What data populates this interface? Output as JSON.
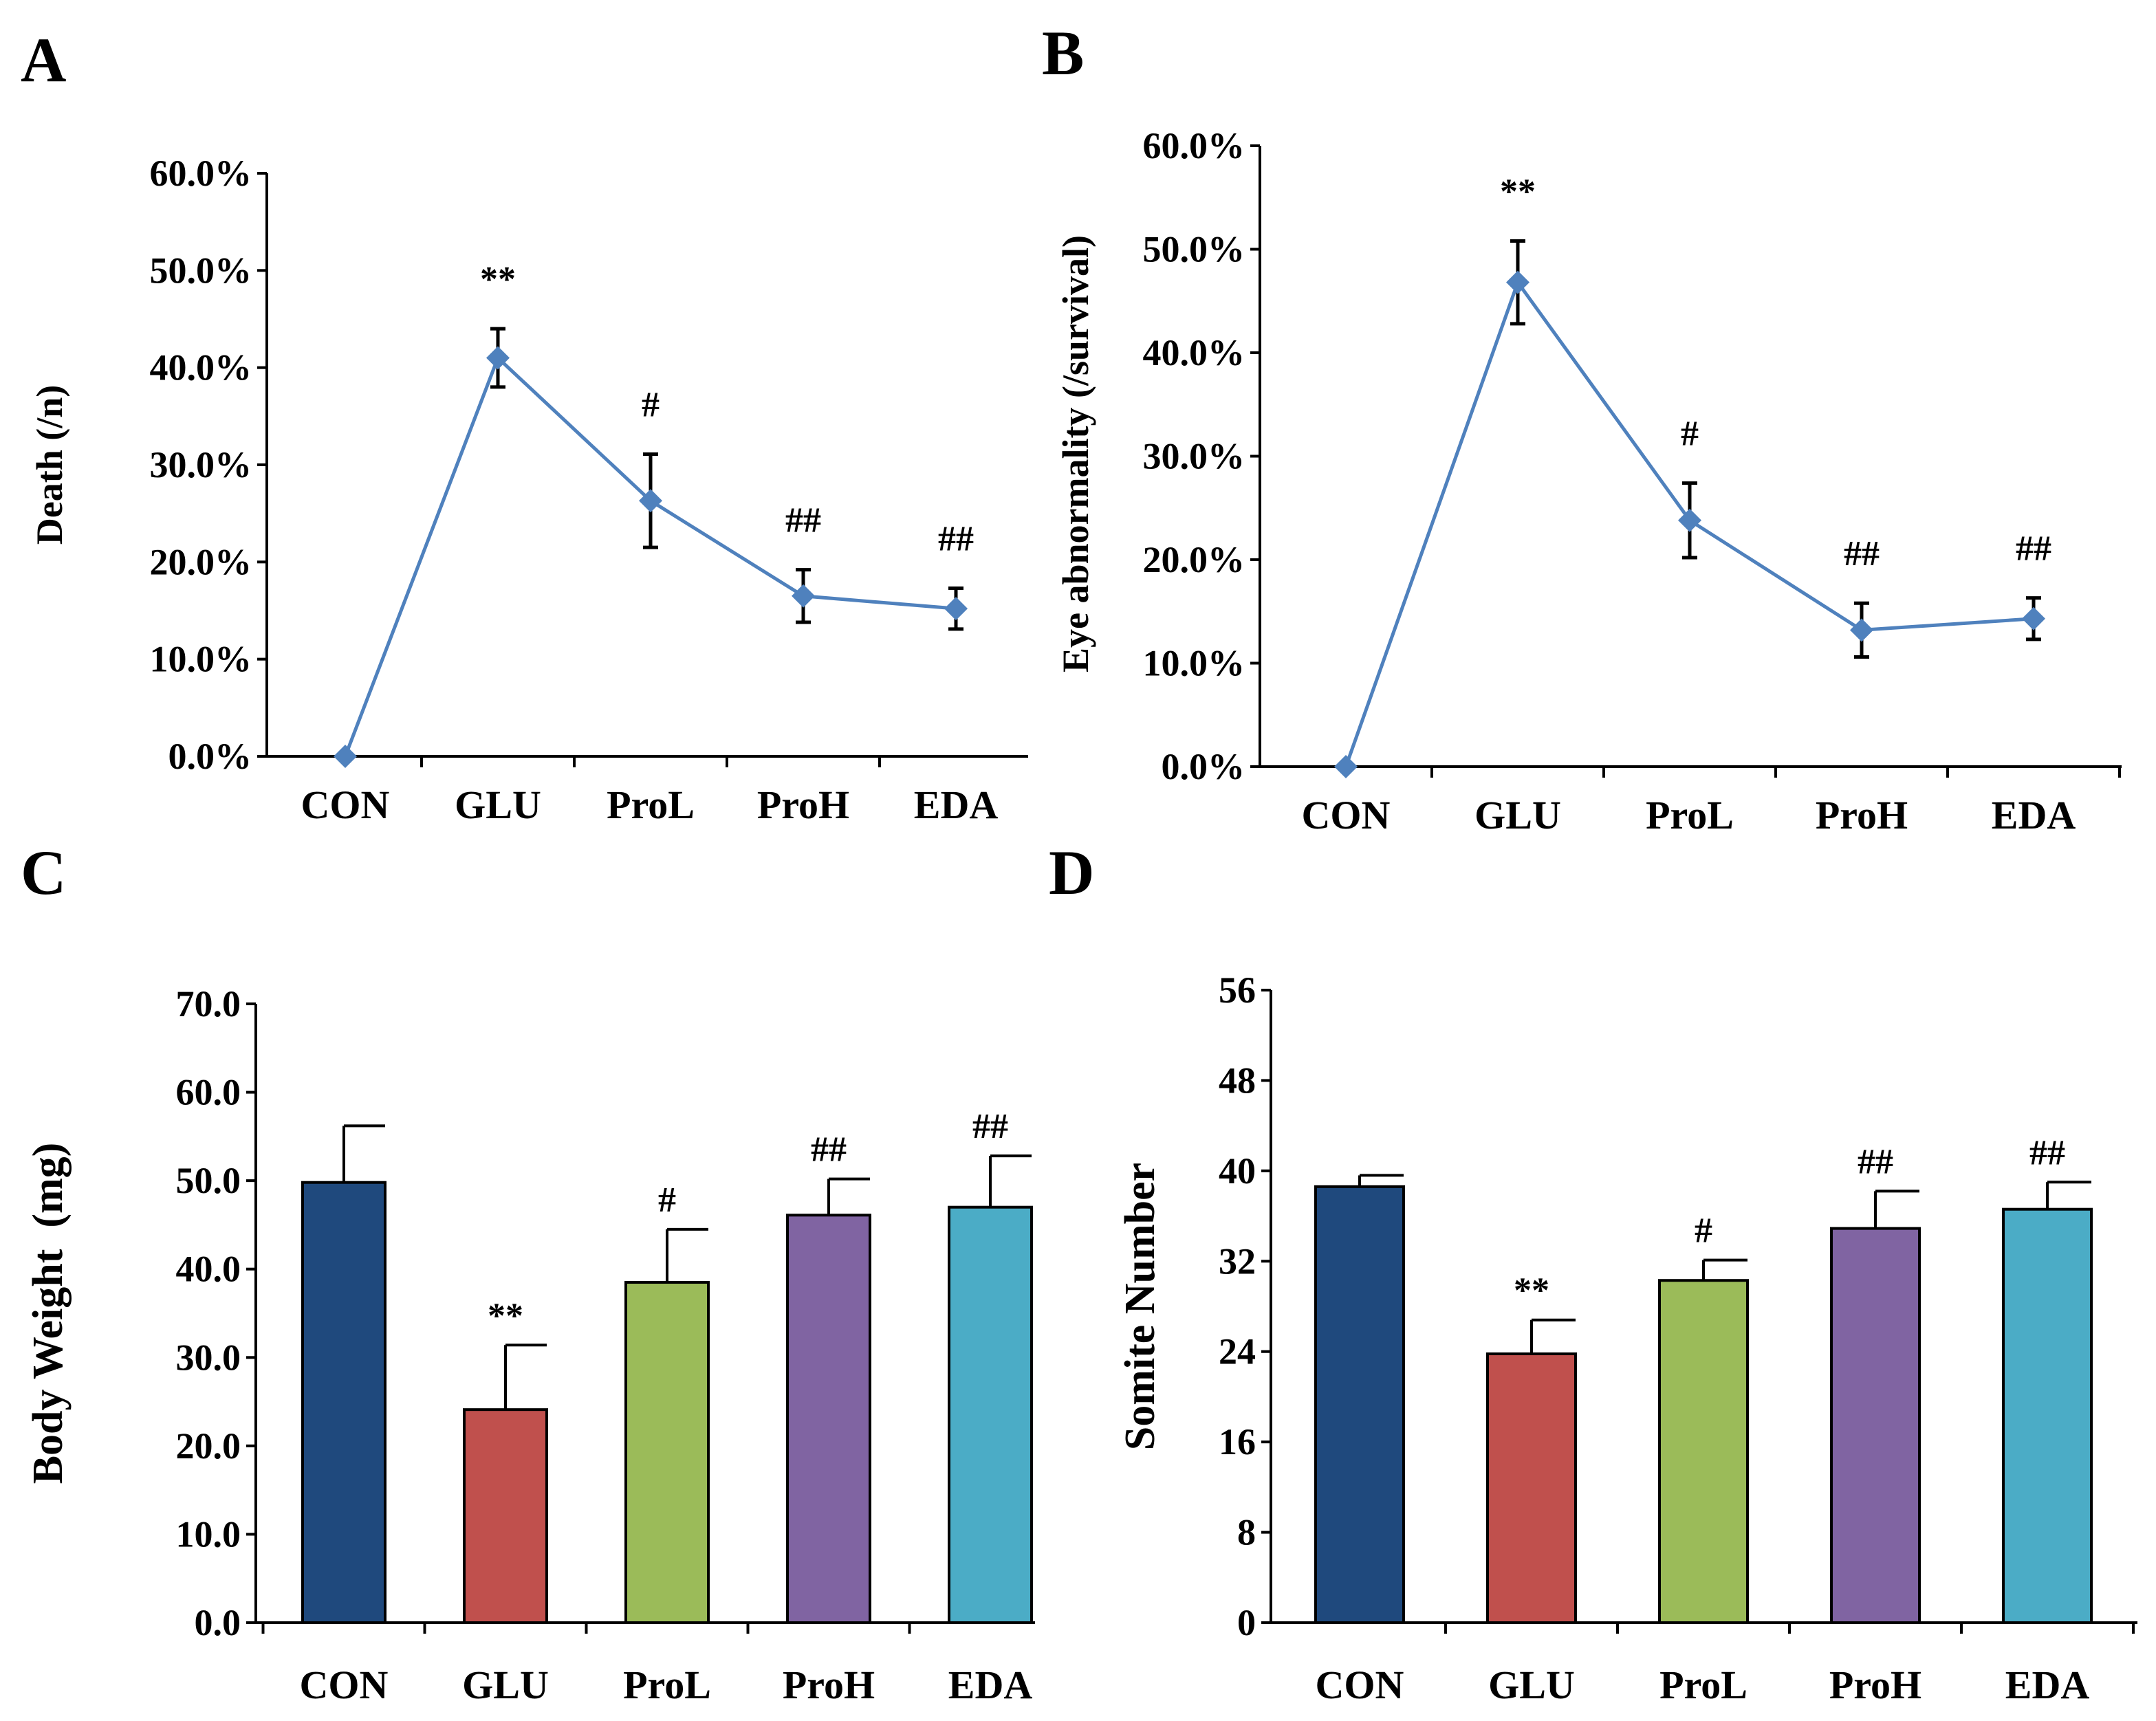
{
  "chart_data": [
    {
      "panel": "A",
      "type": "line",
      "categories": [
        "CON",
        "GLU",
        "ProL",
        "ProH",
        "EDA"
      ],
      "values": [
        0.0,
        41.0,
        26.3,
        16.5,
        15.2
      ],
      "errors": [
        0.0,
        3.0,
        4.8,
        2.7,
        2.1
      ],
      "significance": [
        "",
        "**",
        "#",
        "##",
        "##"
      ],
      "ylabel": "Death (/n)",
      "ylim": [
        0,
        60
      ],
      "yticks": [
        "0.0%",
        "10.0%",
        "20.0%",
        "30.0%",
        "40.0%",
        "50.0%",
        "60.0%"
      ],
      "color": "#4F81BD"
    },
    {
      "panel": "B",
      "type": "line",
      "categories": [
        "CON",
        "GLU",
        "ProL",
        "ProH",
        "EDA"
      ],
      "values": [
        0.0,
        46.8,
        23.8,
        13.2,
        14.3
      ],
      "errors": [
        0.0,
        4.0,
        3.6,
        2.6,
        2.0
      ],
      "significance": [
        "",
        "**",
        "#",
        "##",
        "##"
      ],
      "ylabel": "Eye abnormality (/survival)",
      "ylim": [
        0,
        60
      ],
      "yticks": [
        "0.0%",
        "10.0%",
        "20.0%",
        "30.0%",
        "40.0%",
        "50.0%",
        "60.0%"
      ],
      "color": "#4F81BD"
    },
    {
      "panel": "C",
      "type": "bar",
      "categories": [
        "CON",
        "GLU",
        "ProL",
        "ProH",
        "EDA"
      ],
      "values": [
        49.8,
        24.1,
        38.5,
        46.1,
        47.0
      ],
      "errors": [
        6.4,
        7.3,
        6.0,
        4.1,
        5.8
      ],
      "significance": [
        "",
        "**",
        "#",
        "##",
        "##"
      ],
      "ylabel": "Body Weight  (mg)",
      "ylim": [
        0,
        70
      ],
      "yticks": [
        "0.0",
        "10.0",
        "20.0",
        "30.0",
        "40.0",
        "50.0",
        "60.0",
        "70.0"
      ],
      "colors": [
        "#1F497D",
        "#C0504D",
        "#9BBB59",
        "#8064A2",
        "#4BACC6"
      ]
    },
    {
      "panel": "D",
      "type": "bar",
      "categories": [
        "CON",
        "GLU",
        "ProL",
        "ProH",
        "EDA"
      ],
      "values": [
        38.6,
        23.8,
        30.3,
        34.9,
        36.6
      ],
      "errors": [
        1.0,
        3.0,
        1.8,
        3.3,
        2.4
      ],
      "significance": [
        "",
        "**",
        "#",
        "##",
        "##"
      ],
      "ylabel": "Somite Number",
      "ylim": [
        0,
        56
      ],
      "yticks": [
        "0",
        "8",
        "16",
        "24",
        "32",
        "40",
        "48",
        "56"
      ],
      "colors": [
        "#1F497D",
        "#C0504D",
        "#9BBB59",
        "#8064A2",
        "#4BACC6"
      ]
    }
  ]
}
